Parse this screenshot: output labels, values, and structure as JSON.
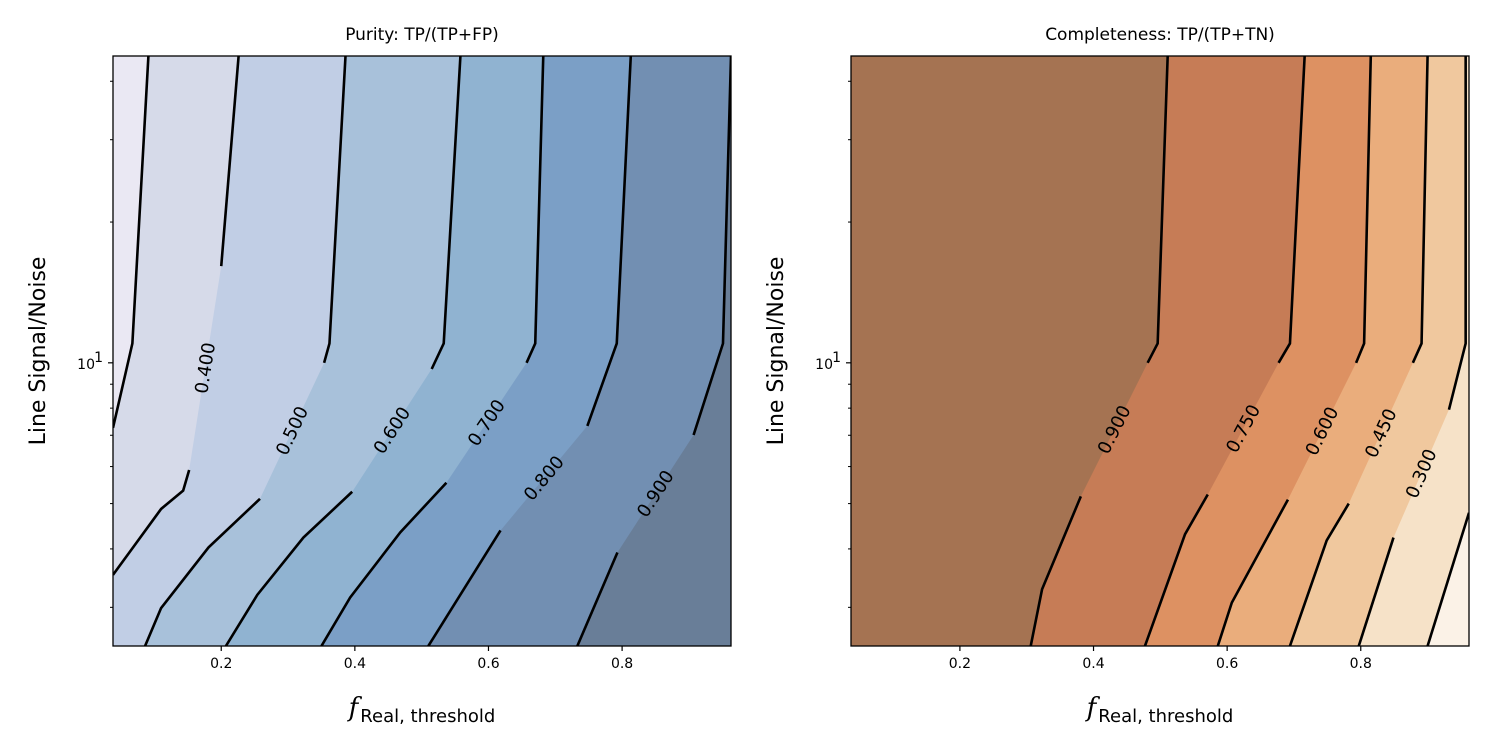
{
  "chart_data": [
    {
      "type": "contour",
      "title": "Purity: TP/(TP+FP)",
      "xlabel": {
        "symbol": "f",
        "subscript": "Real, threshold"
      },
      "ylabel": "Line Signal/Noise",
      "xlim": [
        0.038,
        0.963
      ],
      "ylim": [
        2.48,
        45.3
      ],
      "yscale": "log",
      "xticks": [
        0.2,
        0.4,
        0.6,
        0.8
      ],
      "xtick_labels": [
        "0.2",
        "0.4",
        "0.6",
        "0.8"
      ],
      "yticks_major": [
        10
      ],
      "ytick_labels": [
        {
          "base": "10",
          "exp": "1"
        }
      ],
      "yticks_minor": [
        3,
        4,
        5,
        6,
        7,
        8,
        9,
        20,
        30,
        40
      ],
      "fill_side": "right",
      "base_color": "#eae8f3",
      "colormap": "Blues",
      "contours": [
        {
          "level": 0.3,
          "label": "",
          "color": "#d6dae9",
          "upper": [
            [
              0.091,
              45.3
            ],
            [
              0.067,
              11.0
            ],
            [
              0.038,
              7.26
            ]
          ],
          "lower": []
        },
        {
          "level": 0.4,
          "label": "0.400",
          "color": "#c1cee5",
          "upper": [
            [
              0.226,
              45.3
            ],
            [
              0.2,
              16.1
            ]
          ],
          "lower": [
            [
              0.152,
              5.9
            ],
            [
              0.143,
              5.33
            ],
            [
              0.11,
              4.87
            ],
            [
              0.038,
              3.52
            ]
          ]
        },
        {
          "level": 0.5,
          "label": "0.500",
          "color": "#a8c1da",
          "upper": [
            [
              0.386,
              45.3
            ],
            [
              0.362,
              11.0
            ],
            [
              0.354,
              10.0
            ]
          ],
          "lower": [
            [
              0.258,
              5.12
            ],
            [
              0.181,
              4.03
            ],
            [
              0.11,
              2.99
            ],
            [
              0.086,
              2.48
            ]
          ]
        },
        {
          "level": 0.6,
          "label": "0.600",
          "color": "#90b3d1",
          "upper": [
            [
              0.558,
              45.3
            ],
            [
              0.533,
              11.0
            ],
            [
              0.515,
              9.7
            ]
          ],
          "lower": [
            [
              0.396,
              5.3
            ],
            [
              0.323,
              4.23
            ],
            [
              0.254,
              3.19
            ],
            [
              0.207,
              2.48
            ]
          ]
        },
        {
          "level": 0.7,
          "label": "0.700",
          "color": "#7b9fc6",
          "upper": [
            [
              0.682,
              45.3
            ],
            [
              0.67,
              11.0
            ],
            [
              0.657,
              10.0
            ]
          ],
          "lower": [
            [
              0.537,
              5.54
            ],
            [
              0.468,
              4.34
            ],
            [
              0.393,
              3.15
            ],
            [
              0.35,
              2.48
            ]
          ]
        },
        {
          "level": 0.8,
          "label": "0.800",
          "color": "#728fb2",
          "upper": [
            [
              0.813,
              45.3
            ],
            [
              0.792,
              11.0
            ],
            [
              0.748,
              7.33
            ]
          ],
          "lower": [
            [
              0.618,
              4.38
            ],
            [
              0.51,
              2.48
            ]
          ]
        },
        {
          "level": 0.9,
          "label": "0.900",
          "color": "#697e98",
          "upper": [
            [
              0.963,
              45.3
            ],
            [
              0.951,
              11.0
            ],
            [
              0.907,
              7.01
            ]
          ],
          "lower": [
            [
              0.793,
              3.93
            ],
            [
              0.733,
              2.48
            ]
          ]
        }
      ]
    },
    {
      "type": "contour",
      "title": "Completeness: TP/(TP+TN)",
      "xlabel": {
        "symbol": "f",
        "subscript": "Real, threshold"
      },
      "ylabel": "Line Signal/Noise",
      "xlim": [
        0.037,
        0.962
      ],
      "ylim": [
        2.48,
        45.3
      ],
      "yscale": "log",
      "xticks": [
        0.2,
        0.4,
        0.6,
        0.8
      ],
      "xtick_labels": [
        "0.2",
        "0.4",
        "0.6",
        "0.8"
      ],
      "yticks_major": [
        10
      ],
      "ytick_labels": [
        {
          "base": "10",
          "exp": "1"
        }
      ],
      "yticks_minor": [
        3,
        4,
        5,
        6,
        7,
        8,
        9,
        20,
        30,
        40
      ],
      "fill_side": "left",
      "base_color": "#fbf2e7",
      "colormap": "Oranges",
      "contours": [
        {
          "level": 0.15,
          "label": "",
          "color": "#f6e2c8",
          "upper": [
            [
              0.962,
              4.78
            ],
            [
              0.9,
              2.48
            ]
          ],
          "lower": []
        },
        {
          "level": 0.3,
          "label": "0.300",
          "color": "#f0c89e",
          "upper": [
            [
              0.957,
              45.3
            ],
            [
              0.957,
              11.0
            ],
            [
              0.932,
              7.94
            ]
          ],
          "lower": [
            [
              0.849,
              4.23
            ],
            [
              0.797,
              2.48
            ]
          ]
        },
        {
          "level": 0.45,
          "label": "0.450",
          "color": "#eaad7c",
          "upper": [
            [
              0.9,
              45.3
            ],
            [
              0.891,
              11.0
            ],
            [
              0.878,
              10.0
            ]
          ],
          "lower": [
            [
              0.782,
              5.0
            ],
            [
              0.749,
              4.17
            ],
            [
              0.694,
              2.48
            ]
          ]
        },
        {
          "level": 0.6,
          "label": "0.600",
          "color": "#dd9162",
          "upper": [
            [
              0.815,
              45.3
            ],
            [
              0.805,
              11.0
            ],
            [
              0.793,
              10.0
            ]
          ],
          "lower": [
            [
              0.691,
              5.1
            ],
            [
              0.607,
              3.07
            ],
            [
              0.586,
              2.48
            ]
          ]
        },
        {
          "level": 0.75,
          "label": "0.750",
          "color": "#c67c56",
          "upper": [
            [
              0.716,
              45.3
            ],
            [
              0.694,
              11.0
            ],
            [
              0.677,
              10.0
            ]
          ],
          "lower": [
            [
              0.571,
              5.23
            ],
            [
              0.537,
              4.3
            ],
            [
              0.477,
              2.48
            ]
          ]
        },
        {
          "level": 0.9,
          "label": "0.900",
          "color": "#a57352",
          "upper": [
            [
              0.511,
              45.3
            ],
            [
              0.496,
              11.0
            ],
            [
              0.481,
              10.0
            ]
          ],
          "lower": [
            [
              0.381,
              5.18
            ],
            [
              0.323,
              3.28
            ],
            [
              0.306,
              2.48
            ]
          ]
        }
      ]
    }
  ]
}
